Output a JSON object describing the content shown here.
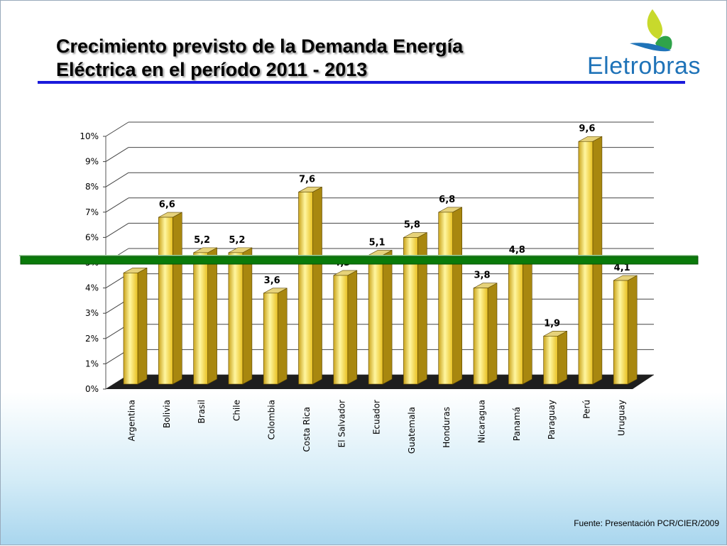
{
  "title_line1": "Crecimiento previsto de la Demanda Energía",
  "title_line2": "Eléctrica en el período 2011 - 2013",
  "logo_text": "Eletrobras",
  "source": "Fuente: Presentación PCR/CIER/2009",
  "colors": {
    "bar": "#f2d02a",
    "bar_side": "#a8870f",
    "floor": "#1e1e1e",
    "line": "#0a7a0a",
    "rule": "#1a1adb"
  },
  "chart_data": {
    "type": "bar",
    "categories": [
      "Argentina",
      "Bolivia",
      "Brasil",
      "Chile",
      "Colombia",
      "Costa Rica",
      "El Salvador",
      "Ecuador",
      "Guatemala",
      "Honduras",
      "Nicaragua",
      "Panamá",
      "Paraguay",
      "Perú",
      "Uruguay"
    ],
    "values": [
      4.4,
      6.6,
      5.2,
      5.2,
      3.6,
      7.6,
      4.3,
      5.1,
      5.8,
      6.8,
      3.8,
      4.8,
      1.9,
      9.6,
      4.1
    ],
    "data_labels": [
      "4,4",
      "6,6",
      "5,2",
      "5,2",
      "3,6",
      "7,6",
      "4,3",
      "5,1",
      "5,8",
      "6,8",
      "3,8",
      "4,8",
      "1,9",
      "9,6",
      "4,1"
    ],
    "yticks": [
      "0%",
      "1%",
      "2%",
      "3%",
      "4%",
      "5%",
      "6%",
      "7%",
      "8%",
      "9%",
      "10%"
    ],
    "ylim": [
      0,
      10
    ],
    "grid": true,
    "reference_line": 5,
    "style": "3d"
  }
}
